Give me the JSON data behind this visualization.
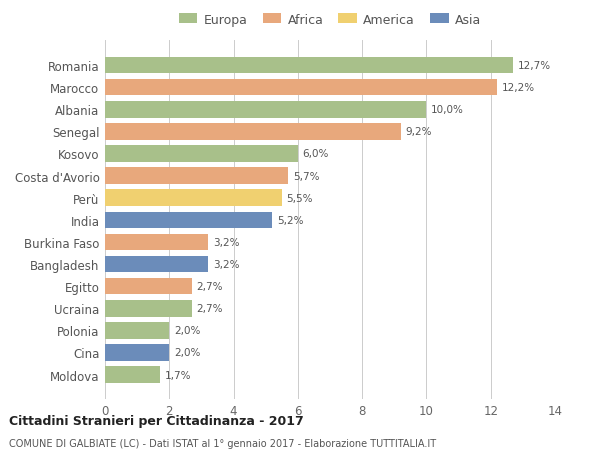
{
  "categories": [
    "Romania",
    "Marocco",
    "Albania",
    "Senegal",
    "Kosovo",
    "Costa d'Avorio",
    "Perù",
    "India",
    "Burkina Faso",
    "Bangladesh",
    "Egitto",
    "Ucraina",
    "Polonia",
    "Cina",
    "Moldova"
  ],
  "values": [
    12.7,
    12.2,
    10.0,
    9.2,
    6.0,
    5.7,
    5.5,
    5.2,
    3.2,
    3.2,
    2.7,
    2.7,
    2.0,
    2.0,
    1.7
  ],
  "continents": [
    "Europa",
    "Africa",
    "Europa",
    "Africa",
    "Europa",
    "Africa",
    "America",
    "Asia",
    "Africa",
    "Asia",
    "Africa",
    "Europa",
    "Europa",
    "Asia",
    "Europa"
  ],
  "labels": [
    "12,7%",
    "12,2%",
    "10,0%",
    "9,2%",
    "6,0%",
    "5,7%",
    "5,5%",
    "5,2%",
    "3,2%",
    "3,2%",
    "2,7%",
    "2,7%",
    "2,0%",
    "2,0%",
    "1,7%"
  ],
  "colors": {
    "Europa": "#a8c08a",
    "Africa": "#e8a87c",
    "America": "#f0d070",
    "Asia": "#6b8cba"
  },
  "legend_order": [
    "Europa",
    "Africa",
    "America",
    "Asia"
  ],
  "title1": "Cittadini Stranieri per Cittadinanza - 2017",
  "title2": "COMUNE DI GALBIATE (LC) - Dati ISTAT al 1° gennaio 2017 - Elaborazione TUTTITALIA.IT",
  "xlim": [
    0,
    14
  ],
  "xticks": [
    0,
    2,
    4,
    6,
    8,
    10,
    12,
    14
  ],
  "bg_color": "#ffffff"
}
